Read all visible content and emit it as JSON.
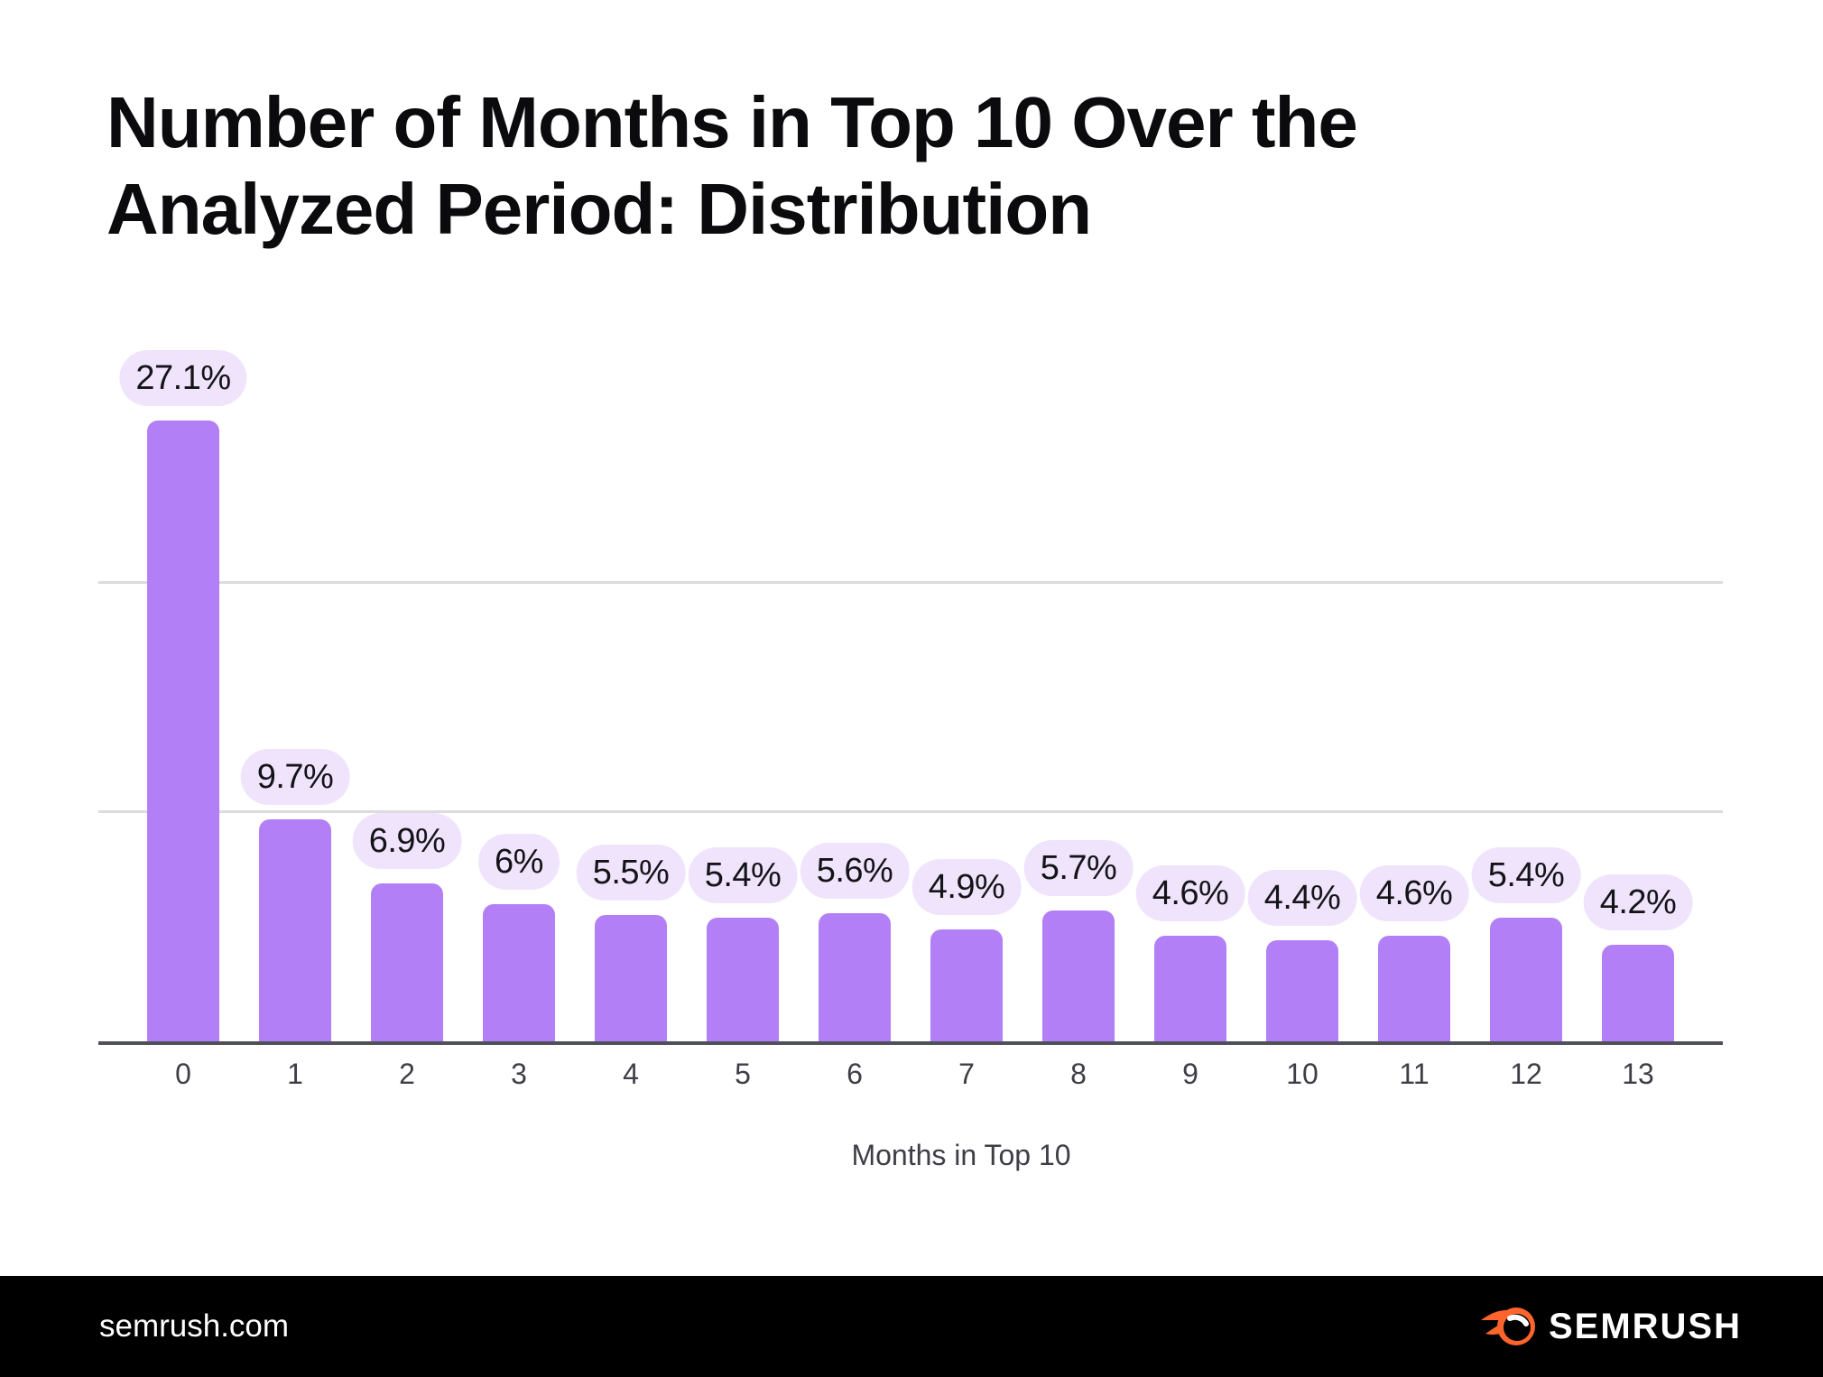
{
  "title": "Number of Months in Top 10 Over the Analyzed Period: Distribution",
  "chart_data": {
    "type": "bar",
    "title": "Number of Months in Top 10 Over the Analyzed Period: Distribution",
    "categories": [
      "0",
      "1",
      "2",
      "3",
      "4",
      "5",
      "6",
      "7",
      "8",
      "9",
      "10",
      "11",
      "12",
      "13"
    ],
    "values": [
      27.1,
      9.7,
      6.9,
      6,
      5.5,
      5.4,
      5.6,
      4.9,
      5.7,
      4.6,
      4.4,
      4.6,
      5.4,
      4.2
    ],
    "value_labels": [
      "27.1%",
      "9.7%",
      "6.9%",
      "6%",
      "5.5%",
      "5.4%",
      "5.6%",
      "4.9%",
      "5.7%",
      "4.6%",
      "4.4%",
      "4.6%",
      "5.4%",
      "4.2%"
    ],
    "xlabel": "Months in Top 10",
    "ylabel": "",
    "ylim": [
      0,
      30
    ],
    "gridline_values": [
      10,
      20
    ],
    "grid": "horizontal-only",
    "legend": "none",
    "y_axis_labels": "hidden",
    "bar_color": "#b27ff7",
    "value_pill_background": "#f0e4fd",
    "value_pill_text_color": "#141418",
    "axis_line_color": "#50505a",
    "gridline_color": "#dcdcdf",
    "tick_label_color": "#3e3e47"
  },
  "footer": {
    "site": "semrush.com",
    "brand": "SEMRUSH",
    "logo_orange": "#ff642d",
    "background": "#000000"
  }
}
